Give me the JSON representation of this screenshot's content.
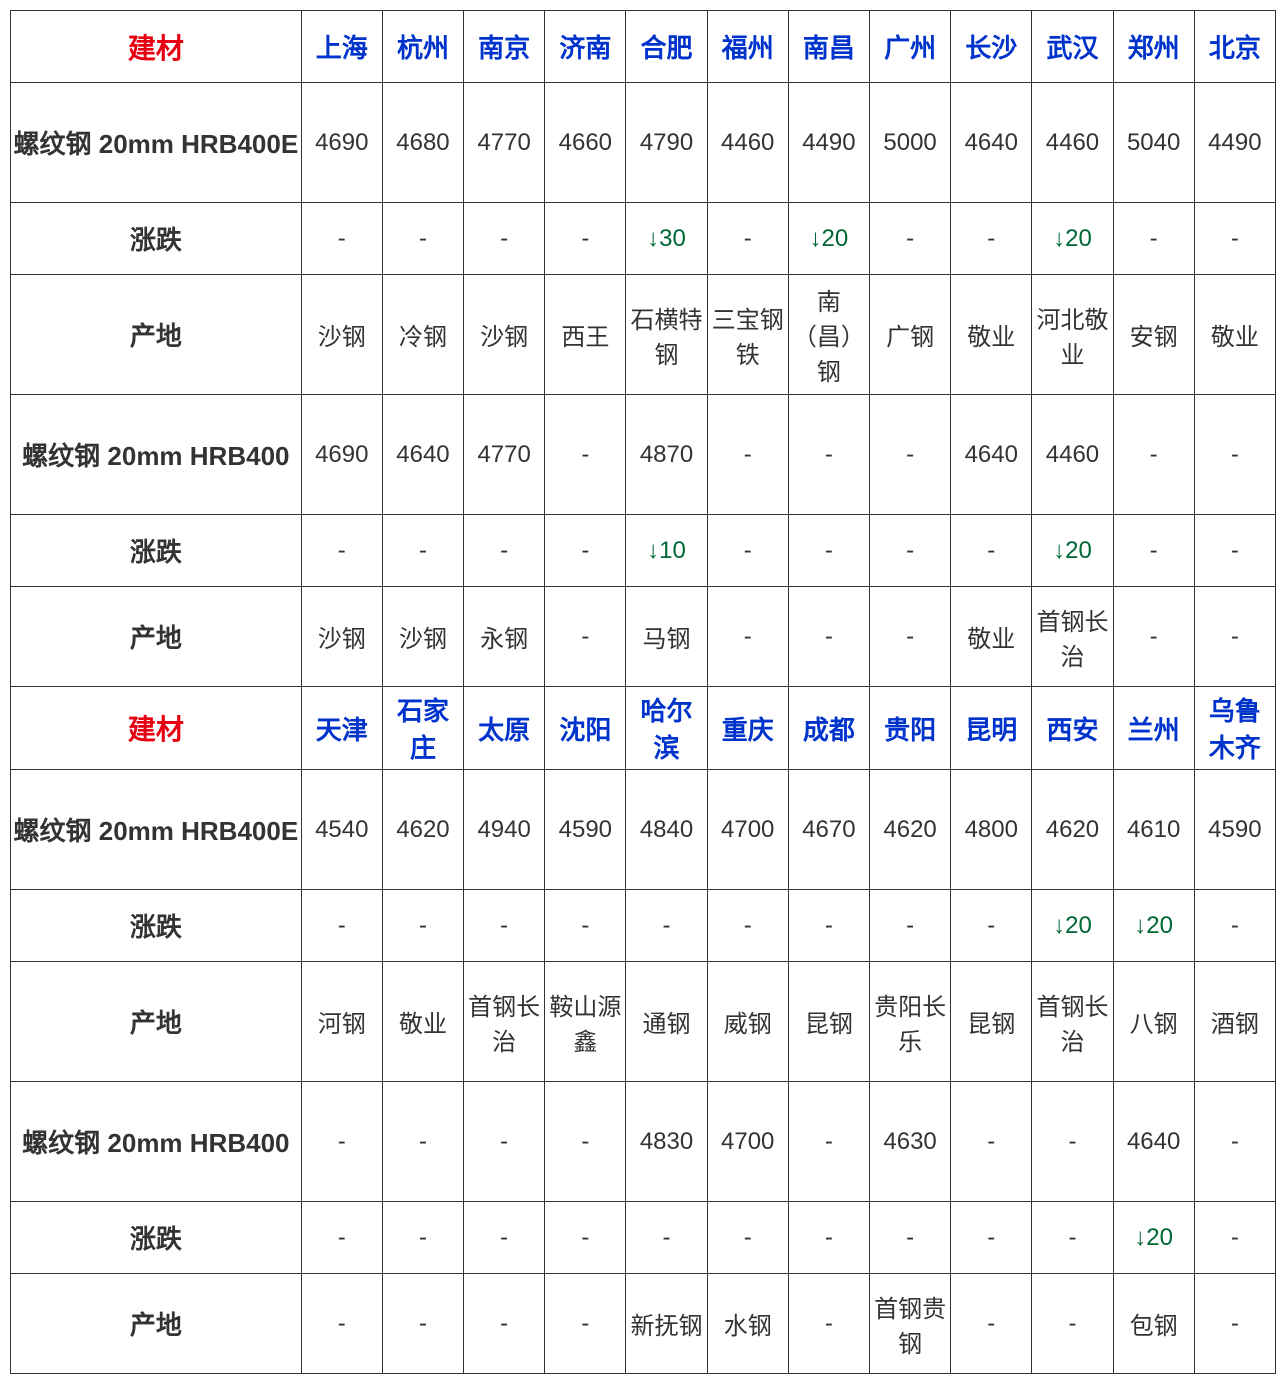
{
  "colors": {
    "border": "#333333",
    "text": "#333333",
    "header_red": "#e60012",
    "city_blue": "#0033cc",
    "change_down": "#006633",
    "background": "#ffffff"
  },
  "font": {
    "family": "Microsoft YaHei",
    "base_size": 24,
    "header_size": 28
  },
  "table": {
    "section1": {
      "header_label": "建材",
      "cities": [
        "上海",
        "杭州",
        "南京",
        "济南",
        "合肥",
        "福州",
        "南昌",
        "广州",
        "长沙",
        "武汉",
        "郑州",
        "北京"
      ],
      "rows": [
        {
          "label": "螺纹钢 20mm HRB400E",
          "type": "product",
          "values": [
            "4690",
            "4680",
            "4770",
            "4660",
            "4790",
            "4460",
            "4490",
            "5000",
            "4640",
            "4460",
            "5040",
            "4490"
          ]
        },
        {
          "label": "涨跌",
          "type": "change",
          "values": [
            "-",
            "-",
            "-",
            "-",
            "↓30",
            "-",
            "↓20",
            "-",
            "-",
            "↓20",
            "-",
            "-"
          ]
        },
        {
          "label": "产地",
          "type": "origin",
          "values": [
            "沙钢",
            "冷钢",
            "沙钢",
            "西王",
            "石横特钢",
            "三宝钢铁",
            "南（昌）钢",
            "广钢",
            "敬业",
            "河北敬业",
            "安钢",
            "敬业"
          ]
        },
        {
          "label": "螺纹钢 20mm HRB400",
          "type": "product",
          "values": [
            "4690",
            "4640",
            "4770",
            "-",
            "4870",
            "-",
            "-",
            "-",
            "4640",
            "4460",
            "-",
            "-"
          ]
        },
        {
          "label": "涨跌",
          "type": "change",
          "values": [
            "-",
            "-",
            "-",
            "-",
            "↓10",
            "-",
            "-",
            "-",
            "-",
            "↓20",
            "-",
            "-"
          ]
        },
        {
          "label": "产地",
          "type": "origin_short",
          "values": [
            "沙钢",
            "沙钢",
            "永钢",
            "-",
            "马钢",
            "-",
            "-",
            "-",
            "敬业",
            "首钢长治",
            "-",
            "-"
          ]
        }
      ]
    },
    "section2": {
      "header_label": "建材",
      "cities": [
        "天津",
        "石家庄",
        "太原",
        "沈阳",
        "哈尔滨",
        "重庆",
        "成都",
        "贵阳",
        "昆明",
        "西安",
        "兰州",
        "乌鲁木齐"
      ],
      "rows": [
        {
          "label": "螺纹钢 20mm HRB400E",
          "type": "product",
          "values": [
            "4540",
            "4620",
            "4940",
            "4590",
            "4840",
            "4700",
            "4670",
            "4620",
            "4800",
            "4620",
            "4610",
            "4590"
          ]
        },
        {
          "label": "涨跌",
          "type": "change",
          "values": [
            "-",
            "-",
            "-",
            "-",
            "-",
            "-",
            "-",
            "-",
            "-",
            "↓20",
            "↓20",
            "-"
          ]
        },
        {
          "label": "产地",
          "type": "origin",
          "values": [
            "河钢",
            "敬业",
            "首钢长治",
            "鞍山源鑫",
            "通钢",
            "威钢",
            "昆钢",
            "贵阳长乐",
            "昆钢",
            "首钢长治",
            "八钢",
            "酒钢"
          ]
        },
        {
          "label": "螺纹钢 20mm HRB400",
          "type": "product",
          "values": [
            "-",
            "-",
            "-",
            "-",
            "4830",
            "4700",
            "-",
            "4630",
            "-",
            "-",
            "4640",
            "-"
          ]
        },
        {
          "label": "涨跌",
          "type": "change",
          "values": [
            "-",
            "-",
            "-",
            "-",
            "-",
            "-",
            "-",
            "-",
            "-",
            "-",
            "↓20",
            "-"
          ]
        },
        {
          "label": "产地",
          "type": "origin_short",
          "values": [
            "-",
            "-",
            "-",
            "-",
            "新抚钢",
            "水钢",
            "-",
            "首钢贵钢",
            "-",
            "-",
            "包钢",
            "-"
          ]
        }
      ]
    }
  }
}
